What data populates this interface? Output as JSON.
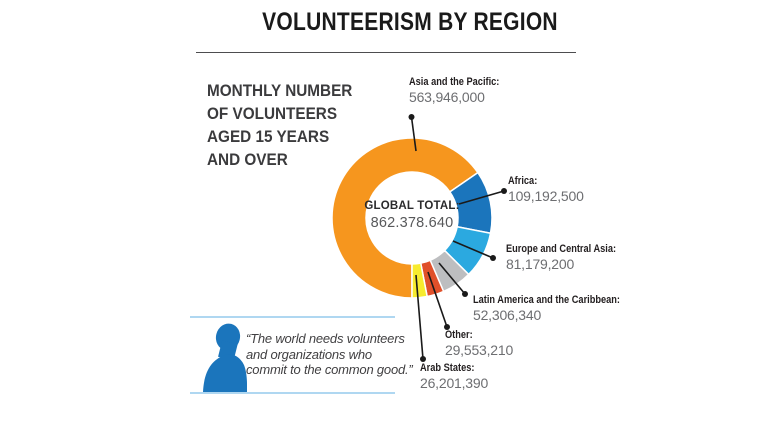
{
  "header": {
    "title": "VOLUNTEERISM BY REGION"
  },
  "subtitle": "MONTHLY NUMBER\nOF VOLUNTEERS\nAGED 15 YEARS\nAND OVER",
  "quote": {
    "text": "“The world needs volunteers\nand organizations who\ncommit to the common good.”"
  },
  "colors": {
    "accent_blue": "#1b75bc",
    "divider_light_blue": "#afd7f1",
    "title_rule_gray": "#4d4d4f",
    "label_bold": "#231f20",
    "number_gray": "#6d6e71",
    "leader_line": "#1a1a1a"
  },
  "chart_data": {
    "type": "pie",
    "variant": "donut",
    "title": "VOLUNTEERISM BY REGION",
    "subtitle": "MONTHLY NUMBER OF VOLUNTEERS AGED 15 YEARS AND OVER",
    "center": {
      "label": "GLOBAL TOTAL:",
      "value_display": "862.378.640",
      "total": 862378640
    },
    "start_angle_deg": 180,
    "direction": "clockwise",
    "legend_position": "callouts-around-donut",
    "segments": [
      {
        "label": "Asia and the Pacific:",
        "value": 563946000,
        "display": "563,946,000",
        "color": "#f6961e"
      },
      {
        "label": "Africa:",
        "value": 109192500,
        "display": "109,192,500",
        "color": "#1b75bc"
      },
      {
        "label": "Europe and Central Asia:",
        "value": 81179200,
        "display": "81,179,200",
        "color": "#2ba9e0"
      },
      {
        "label": "Latin America and the Caribbean:",
        "value": 52306340,
        "display": "52,306,340",
        "color": "#bdbec0"
      },
      {
        "label": "Other:",
        "value": 29553210,
        "display": "29,553,210",
        "color": "#e0502a"
      },
      {
        "label": "Arab States:",
        "value": 26201390,
        "display": "26,201,390",
        "color": "#f7eb2e"
      }
    ]
  }
}
